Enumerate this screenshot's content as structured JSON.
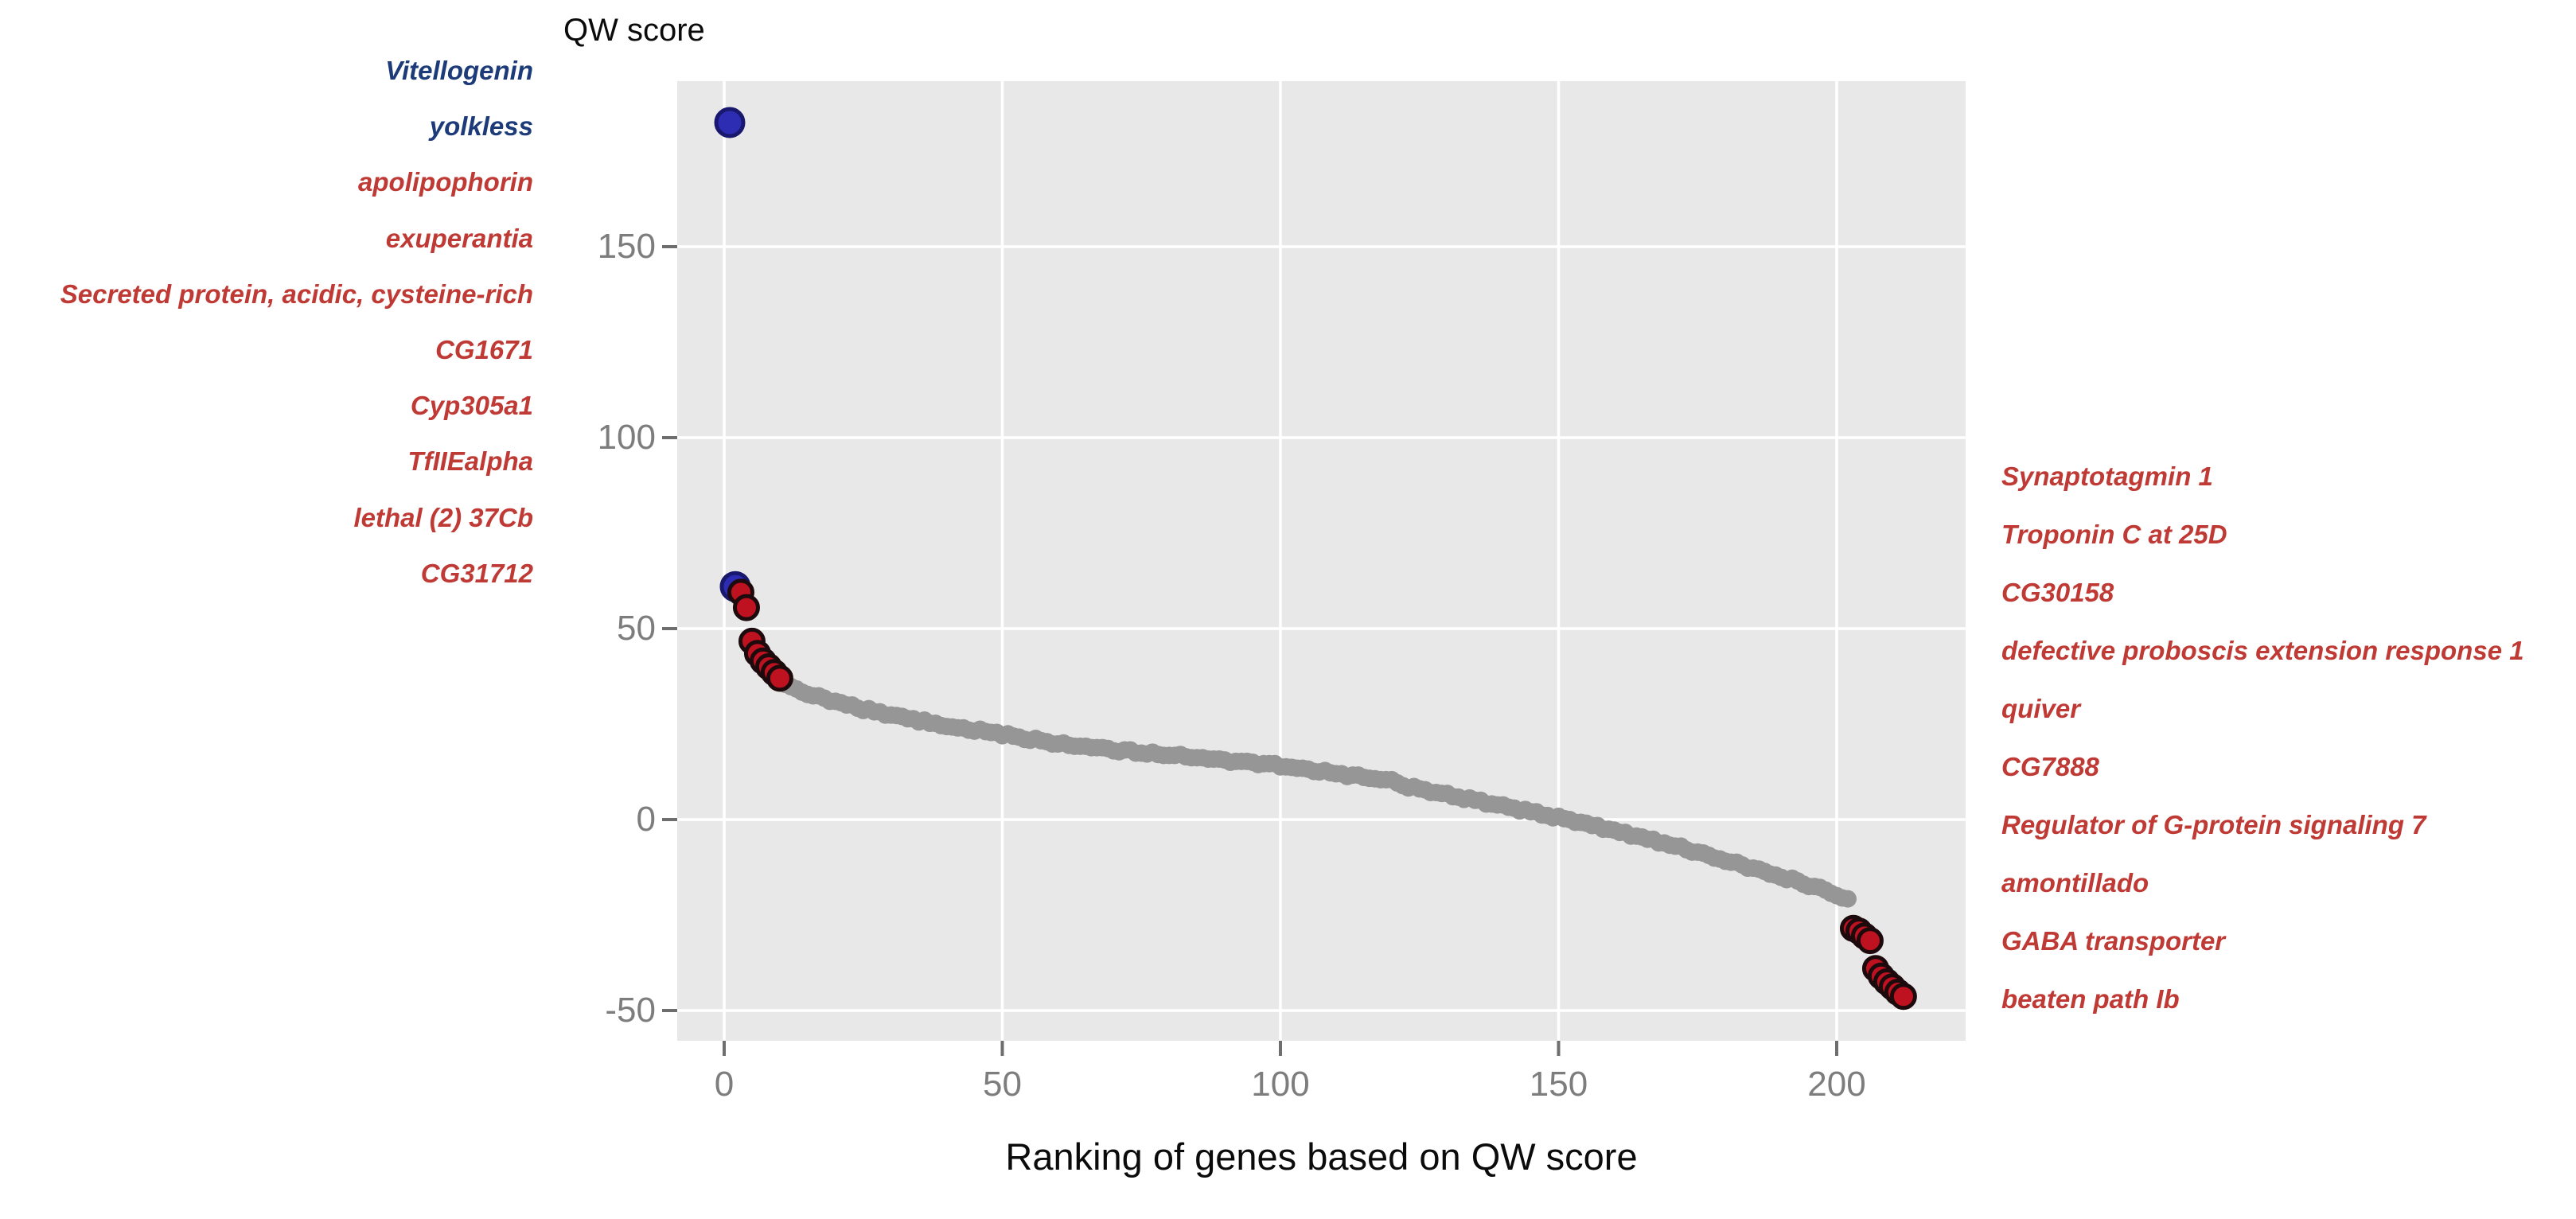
{
  "figure": {
    "y_axis_floating_title": "QW score",
    "x_axis_title": "Ranking of genes based on QW score"
  },
  "left_gene_labels": [
    {
      "label": "Vitellogenin",
      "group": "blue"
    },
    {
      "label": "yolkless",
      "group": "blue"
    },
    {
      "label": "apolipophorin",
      "group": "red"
    },
    {
      "label": "exuperantia",
      "group": "red"
    },
    {
      "label": "Secreted protein, acidic, cysteine-rich",
      "group": "red"
    },
    {
      "label": "CG1671",
      "group": "red"
    },
    {
      "label": "Cyp305a1",
      "group": "red"
    },
    {
      "label": "TfIIEalpha",
      "group": "red"
    },
    {
      "label": "lethal (2) 37Cb",
      "group": "red"
    },
    {
      "label": "CG31712",
      "group": "red"
    }
  ],
  "right_gene_labels": [
    {
      "label": "Synaptotagmin 1",
      "group": "red"
    },
    {
      "label": "Troponin C at 25D",
      "group": "red"
    },
    {
      "label": "CG30158",
      "group": "red"
    },
    {
      "label": "defective proboscis extension response 1",
      "group": "red"
    },
    {
      "label": "quiver",
      "group": "red"
    },
    {
      "label": "CG7888",
      "group": "red"
    },
    {
      "label": "Regulator of G-protein signaling 7",
      "group": "red"
    },
    {
      "label": "amontillado",
      "group": "red"
    },
    {
      "label": "GABA transporter",
      "group": "red"
    },
    {
      "label": "beaten path Ib",
      "group": "red"
    }
  ],
  "chart_data": {
    "type": "scatter",
    "title": "",
    "xlabel": "Ranking of genes based on QW score",
    "ylabel": "QW score",
    "x_ticks": [
      0,
      50,
      100,
      150,
      200
    ],
    "y_ticks": [
      150,
      100,
      50,
      0,
      -50
    ],
    "xlim": [
      -8.5,
      223
    ],
    "ylim": [
      -58,
      193.5
    ],
    "grid": true,
    "legend": false,
    "series": [
      {
        "name": "all-ranked-genes-background",
        "marker": "circle",
        "color": "#969696",
        "rank_range": [
          11,
          202
        ],
        "anchors": [
          [
            11,
            35.5
          ],
          [
            13,
            34
          ],
          [
            16,
            32.5
          ],
          [
            20,
            31
          ],
          [
            25,
            29
          ],
          [
            30,
            27.5
          ],
          [
            35,
            26
          ],
          [
            40,
            24.5
          ],
          [
            45,
            23.4
          ],
          [
            50,
            22.4
          ],
          [
            55,
            21
          ],
          [
            60,
            19.8
          ],
          [
            70,
            18.2
          ],
          [
            80,
            16.8
          ],
          [
            90,
            15.4
          ],
          [
            100,
            14
          ],
          [
            110,
            12
          ],
          [
            115,
            11
          ],
          [
            120,
            10
          ],
          [
            125,
            7.8
          ],
          [
            130,
            6.5
          ],
          [
            135,
            5
          ],
          [
            140,
            3.6
          ],
          [
            145,
            2
          ],
          [
            150,
            0.5
          ],
          [
            155,
            -1.2
          ],
          [
            160,
            -3
          ],
          [
            165,
            -4.8
          ],
          [
            170,
            -6.6
          ],
          [
            175,
            -8.6
          ],
          [
            180,
            -10.8
          ],
          [
            185,
            -12.8
          ],
          [
            190,
            -15
          ],
          [
            195,
            -17.2
          ],
          [
            198,
            -18.6
          ],
          [
            200,
            -19.6
          ],
          [
            202,
            -20.8
          ]
        ]
      },
      {
        "name": "top-blue-highlighted-genes",
        "marker": "circle",
        "color": "#2d2db4",
        "points": [
          {
            "rank": 1,
            "qw_score": 182.5,
            "gene": "Vitellogenin"
          },
          {
            "rank": 2,
            "qw_score": 61,
            "gene": "yolkless"
          }
        ]
      },
      {
        "name": "top-red-highlighted-genes",
        "marker": "circle",
        "color": "#bf1220",
        "points": [
          {
            "rank": 3,
            "qw_score": 59.5,
            "gene": "apolipophorin"
          },
          {
            "rank": 4,
            "qw_score": 55.5,
            "gene": "exuperantia"
          },
          {
            "rank": 5,
            "qw_score": 46.7,
            "gene": "Secreted protein, acidic, cysteine-rich"
          },
          {
            "rank": 6,
            "qw_score": 43.5,
            "gene": "CG1671"
          },
          {
            "rank": 7,
            "qw_score": 41.5,
            "gene": "Cyp305a1"
          },
          {
            "rank": 8,
            "qw_score": 40,
            "gene": "TfIIEalpha"
          },
          {
            "rank": 9,
            "qw_score": 38.5,
            "gene": "lethal (2) 37Cb"
          },
          {
            "rank": 10,
            "qw_score": 37,
            "gene": "CG31712"
          }
        ]
      },
      {
        "name": "bottom-red-highlighted-genes",
        "marker": "circle",
        "color": "#bf1220",
        "points": [
          {
            "rank": 203,
            "qw_score": -28.5,
            "gene": "Synaptotagmin 1"
          },
          {
            "rank": 204,
            "qw_score": -29.2,
            "gene": "Troponin C at 25D"
          },
          {
            "rank": 205,
            "qw_score": -30.5,
            "gene": "CG30158"
          },
          {
            "rank": 206,
            "qw_score": -31.7,
            "gene": "defective proboscis extension response 1"
          },
          {
            "rank": 207,
            "qw_score": -39,
            "gene": "quiver"
          },
          {
            "rank": 208,
            "qw_score": -41,
            "gene": "CG7888"
          },
          {
            "rank": 209,
            "qw_score": -42.5,
            "gene": "Regulator of G-protein signaling 7"
          },
          {
            "rank": 210,
            "qw_score": -43.8,
            "gene": "amontillado"
          },
          {
            "rank": 211,
            "qw_score": -45.2,
            "gene": "GABA transporter"
          },
          {
            "rank": 212,
            "qw_score": -46.3,
            "gene": "beaten path Ib"
          }
        ]
      }
    ]
  },
  "style": {
    "panel_bg": "#e8e8e8",
    "grid_color": "#ffffff",
    "tick_mark_color": "#6e6e6e",
    "tick_label_color": "#7d7d7d",
    "axis_title_color": "#0b0b0b",
    "gray_dot_fill": "#969696",
    "blue_dot_fill": "#2d2db4",
    "blue_dot_edge": "#18186e",
    "red_dot_fill": "#bf1220",
    "red_dot_edge": "#1d0a0d",
    "blue_label_color": "#1c3b78",
    "red_label_color": "#c03a35"
  }
}
